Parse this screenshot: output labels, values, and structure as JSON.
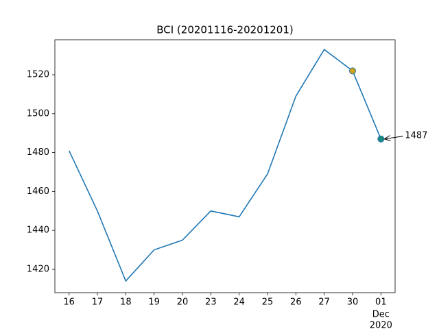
{
  "chart_data": {
    "type": "line",
    "title": "BCI (20201116-20201201)",
    "categories": [
      "16",
      "17",
      "18",
      "19",
      "20",
      "23",
      "24",
      "25",
      "26",
      "27",
      "30",
      "01"
    ],
    "month_label": "Dec",
    "year_label": "2020",
    "series": [
      {
        "color": "#1f77b4",
        "values": [
          1481,
          1450,
          1414,
          1430,
          1435,
          1450,
          1447,
          1469,
          1509,
          1533,
          1522,
          1487
        ],
        "marker_colors": [
          null,
          null,
          null,
          null,
          null,
          null,
          null,
          null,
          null,
          null,
          "#d4a017",
          "#1a8a7a"
        ],
        "value_labels": [
          null,
          null,
          null,
          null,
          null,
          null,
          null,
          null,
          null,
          null,
          null,
          "1487"
        ]
      }
    ],
    "ylim": [
      1408,
      1538
    ],
    "yticks": [
      1420,
      1440,
      1460,
      1480,
      1500,
      1520
    ],
    "grid": false
  }
}
